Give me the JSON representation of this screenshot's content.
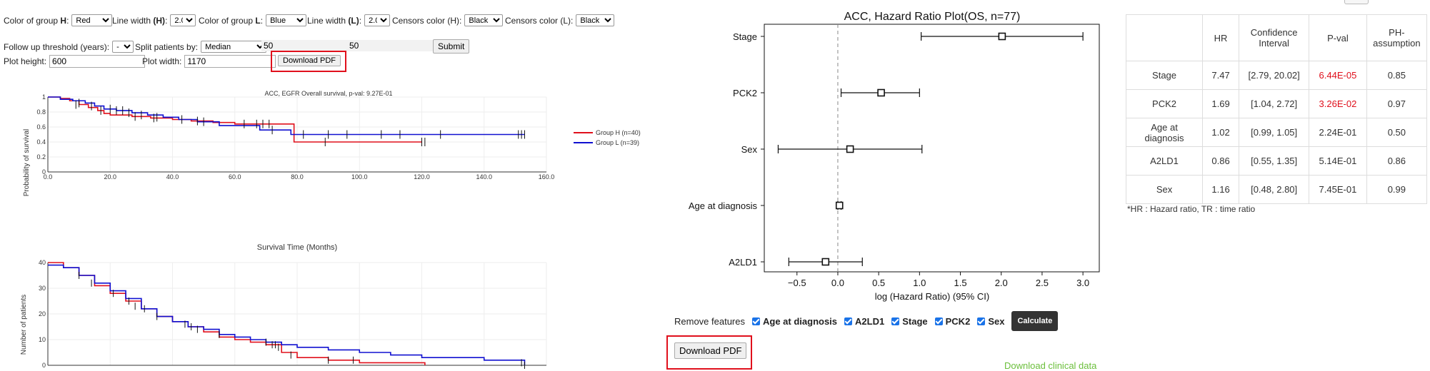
{
  "controls": {
    "color_h_label": "Color of group",
    "color_h_letter": "H",
    "color_h_value": "Red",
    "line_width_h_label": "Line width",
    "line_width_h_letter": "(H)",
    "line_width_h_value": "2.0",
    "color_l_label": "Color of group",
    "color_l_letter": "L",
    "color_l_value": "Blue",
    "line_width_l_label": "Line width",
    "line_width_l_letter": "(L)",
    "line_width_l_value": "2.0",
    "censors_h_label": "Censors color (H):",
    "censors_h_value": "Black",
    "censors_l_label": "Censors color (L):",
    "censors_l_value": "Black",
    "follow_up_label": "Follow up threshold (years):",
    "follow_up_value": "-",
    "split_label": "Split patients by:",
    "split_value": "Median",
    "split_val1": "50",
    "split_val2": "50",
    "submit_label": "Submit",
    "plot_height_label": "Plot height:",
    "plot_height_value": "600",
    "plot_width_label": "Plot width:",
    "plot_width_value": "1170",
    "download_pdf_label": "Download PDF"
  },
  "km": {
    "title": "ACC, EGFR Overall survival, p-val: 9.27E-01",
    "ylabel": "Probability of survival",
    "xlabel": "Survival Time (Months)",
    "xticks": [
      "0.0",
      "20.0",
      "40.0",
      "60.0",
      "80.0",
      "100.0",
      "120.0",
      "140.0",
      "160.0"
    ],
    "yticks": [
      "0",
      "0.2",
      "0.4",
      "0.6",
      "0.8",
      "1"
    ],
    "legend": [
      "Group H (n=40)",
      "Group L (n=39)"
    ],
    "colors": {
      "H": "#e0101c",
      "L": "#1010d0"
    }
  },
  "risk": {
    "ylabel": "Number of patients",
    "yticks": [
      "0",
      "10",
      "20",
      "30",
      "40"
    ]
  },
  "forest": {
    "title": "ACC, Hazard Ratio Plot(OS, n=77)",
    "xlabel": "log (Hazard Ratio) (95% CI)",
    "xticks": [
      "−0.5",
      "0.0",
      "0.5",
      "1.0",
      "1.5",
      "2.0",
      "2.5",
      "3.0"
    ],
    "remove_label": "Remove features",
    "features": [
      "Age at diagnosis",
      "A2LD1",
      "Stage",
      "PCK2",
      "Sex"
    ],
    "calculate_label": "Calculate",
    "download_pdf_label": "Download PDF",
    "download_clinical_label": "Download clinical data"
  },
  "chart_data": [
    {
      "type": "line",
      "title": "ACC, EGFR Overall survival, p-val: 9.27E-01",
      "xlabel": "Survival Time (Months)",
      "ylabel": "Probability of survival",
      "xlim": [
        0,
        160
      ],
      "ylim": [
        0,
        1
      ],
      "series": [
        {
          "name": "Group H (n=40)",
          "x": [
            0,
            4,
            7,
            10,
            13,
            16,
            18,
            20,
            27,
            33,
            40,
            46,
            53,
            60,
            79,
            120
          ],
          "y": [
            1.0,
            0.98,
            0.95,
            0.9,
            0.86,
            0.82,
            0.78,
            0.76,
            0.74,
            0.72,
            0.7,
            0.68,
            0.66,
            0.64,
            0.4,
            0.4
          ]
        },
        {
          "name": "Group L (n=39)",
          "x": [
            0,
            4,
            8,
            12,
            15,
            18,
            22,
            27,
            32,
            37,
            42,
            48,
            55,
            68,
            78,
            153
          ],
          "y": [
            1.0,
            0.97,
            0.95,
            0.92,
            0.88,
            0.84,
            0.82,
            0.79,
            0.76,
            0.73,
            0.7,
            0.67,
            0.62,
            0.56,
            0.5,
            0.5
          ]
        }
      ]
    },
    {
      "type": "line",
      "ylabel": "Number of patients",
      "xlim": [
        0,
        160
      ],
      "ylim": [
        0,
        40
      ],
      "series": [
        {
          "name": "Group H (n=40)",
          "x": [
            0,
            5,
            10,
            15,
            20,
            25,
            30,
            35,
            40,
            45,
            50,
            55,
            60,
            65,
            70,
            75,
            80,
            90,
            100,
            110,
            121
          ],
          "y": [
            40,
            38,
            35,
            31,
            28,
            25,
            22,
            19,
            17,
            15,
            13,
            11,
            10,
            9,
            8,
            5,
            3,
            2,
            1,
            1,
            0
          ]
        },
        {
          "name": "Group L (n=39)",
          "x": [
            0,
            5,
            10,
            15,
            20,
            25,
            30,
            35,
            40,
            45,
            50,
            55,
            60,
            65,
            70,
            75,
            80,
            90,
            100,
            110,
            120,
            130,
            140,
            153
          ],
          "y": [
            39,
            38,
            35,
            32,
            29,
            26,
            22,
            19,
            17,
            15,
            14,
            12,
            11,
            10,
            9,
            8,
            7,
            6,
            5,
            4,
            3,
            3,
            2,
            0
          ]
        }
      ]
    },
    {
      "type": "scatter",
      "title": "ACC, Hazard Ratio Plot(OS, n=77)",
      "xlabel": "log (Hazard Ratio) (95% CI)",
      "xlim": [
        -0.9,
        3.2
      ],
      "categories": [
        "Stage",
        "PCK2",
        "Sex",
        "Age at diagnosis",
        "A2LD1"
      ],
      "estimate": [
        2.01,
        0.53,
        0.15,
        0.02,
        -0.15
      ],
      "ci_low": [
        1.02,
        0.04,
        -0.73,
        0.0,
        -0.6
      ],
      "ci_high": [
        3.0,
        1.0,
        1.03,
        0.04,
        0.3
      ]
    }
  ],
  "table": {
    "headers": [
      "",
      "HR",
      "Confidence Interval",
      "P-val",
      "PH-assumption"
    ],
    "rows": [
      {
        "name": "Stage",
        "hr": "7.47",
        "ci": "[2.79, 20.02]",
        "pval": "6.44E-05",
        "ph": "0.85",
        "sig": true
      },
      {
        "name": "PCK2",
        "hr": "1.69",
        "ci": "[1.04, 2.72]",
        "pval": "3.26E-02",
        "ph": "0.97",
        "sig": true
      },
      {
        "name": "Age at diagnosis",
        "hr": "1.02",
        "ci": "[0.99, 1.05]",
        "pval": "2.24E-01",
        "ph": "0.50",
        "sig": false
      },
      {
        "name": "A2LD1",
        "hr": "0.86",
        "ci": "[0.55, 1.35]",
        "pval": "5.14E-01",
        "ph": "0.86",
        "sig": false
      },
      {
        "name": "Sex",
        "hr": "1.16",
        "ci": "[0.48, 2.80]",
        "pval": "7.45E-01",
        "ph": "0.99",
        "sig": false
      }
    ],
    "footnote": "*HR : Hazard ratio, TR : time ratio"
  }
}
